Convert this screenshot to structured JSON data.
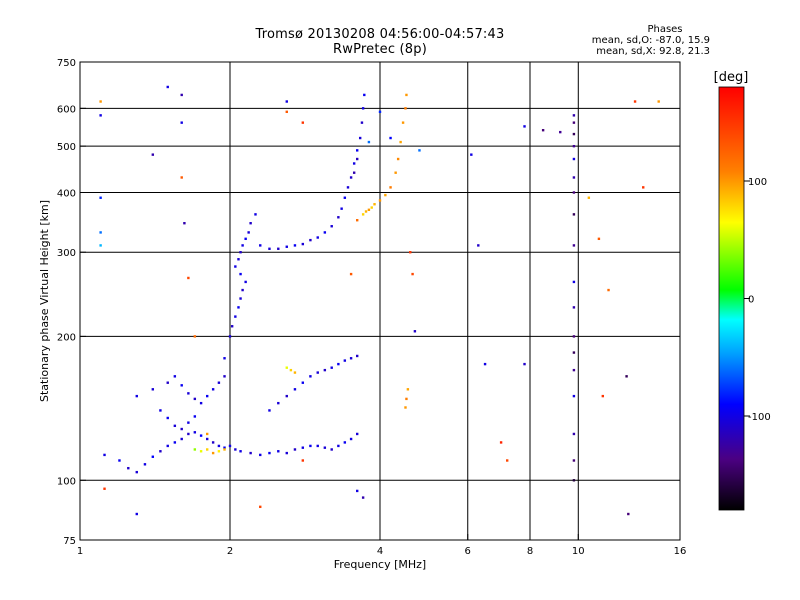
{
  "header": {
    "title": "Tromsø 20130208 04:56:00-04:57:43",
    "subtitle": "RwPretec (8p)"
  },
  "stats": {
    "heading": "Phases",
    "line_o": "mean, sd,O: -87.0, 15.9",
    "line_x": "mean, sd,X: 92.8, 21.3"
  },
  "chart_data": {
    "type": "scatter",
    "xlabel": "Frequency [MHz]",
    "ylabel": "Stationary phase Virtual Height [km]",
    "xscale": "log",
    "yscale": "log",
    "xlim": [
      1,
      16
    ],
    "ylim": [
      75,
      750
    ],
    "x_ticks": [
      "1",
      "2",
      "4",
      "6",
      "8",
      "10",
      "16"
    ],
    "y_ticks": [
      "75",
      "100",
      "200",
      "300",
      "400",
      "500",
      "600",
      "750"
    ],
    "grid": true,
    "colorbar": {
      "label": "[deg]",
      "range": [
        -180,
        180
      ],
      "ticks": [
        "100",
        "0",
        "-100"
      ]
    },
    "series": [
      {
        "name": "",
        "points": [
          [
            1.12,
            113,
            -100
          ],
          [
            1.2,
            110,
            -95
          ],
          [
            1.25,
            106,
            -110
          ],
          [
            1.3,
            104,
            -105
          ],
          [
            1.35,
            108,
            -100
          ],
          [
            1.4,
            112,
            -90
          ],
          [
            1.45,
            115,
            -110
          ],
          [
            1.5,
            118,
            -100
          ],
          [
            1.55,
            120,
            -95
          ],
          [
            1.6,
            122,
            -105
          ],
          [
            1.65,
            125,
            -110
          ],
          [
            1.7,
            126,
            -100
          ],
          [
            1.75,
            124,
            -90
          ],
          [
            1.8,
            122,
            -105
          ],
          [
            1.85,
            120,
            -110
          ],
          [
            1.9,
            118,
            -100
          ],
          [
            1.95,
            117,
            -95
          ],
          [
            2.0,
            118,
            -100
          ],
          [
            2.05,
            116,
            -105
          ],
          [
            2.1,
            115,
            -100
          ],
          [
            2.2,
            114,
            -110
          ],
          [
            2.3,
            113,
            -100
          ],
          [
            2.4,
            114,
            -95
          ],
          [
            2.5,
            115,
            -100
          ],
          [
            2.6,
            114,
            -105
          ],
          [
            2.7,
            116,
            -110
          ],
          [
            2.8,
            117,
            -100
          ],
          [
            2.9,
            118,
            -95
          ],
          [
            3.0,
            118,
            -100
          ],
          [
            3.1,
            117,
            -105
          ],
          [
            3.2,
            116,
            -110
          ],
          [
            3.3,
            118,
            -100
          ],
          [
            3.4,
            120,
            -95
          ],
          [
            3.5,
            122,
            -100
          ],
          [
            3.6,
            125,
            -105
          ],
          [
            1.7,
            116,
            40
          ],
          [
            1.75,
            115,
            60
          ],
          [
            1.8,
            116,
            80
          ],
          [
            1.85,
            114,
            100
          ],
          [
            1.9,
            115,
            70
          ],
          [
            1.95,
            116,
            90
          ],
          [
            1.3,
            150,
            -100
          ],
          [
            1.4,
            155,
            -105
          ],
          [
            1.5,
            160,
            -110
          ],
          [
            1.55,
            165,
            -100
          ],
          [
            1.6,
            158,
            -95
          ],
          [
            1.65,
            152,
            -105
          ],
          [
            1.7,
            148,
            -110
          ],
          [
            1.75,
            145,
            -100
          ],
          [
            1.8,
            150,
            -95
          ],
          [
            1.85,
            155,
            -100
          ],
          [
            1.9,
            160,
            -105
          ],
          [
            1.95,
            165,
            -110
          ],
          [
            1.45,
            140,
            -100
          ],
          [
            1.5,
            135,
            -95
          ],
          [
            1.55,
            130,
            -105
          ],
          [
            1.6,
            128,
            -110
          ],
          [
            1.65,
            132,
            -100
          ],
          [
            1.7,
            136,
            -95
          ],
          [
            2.4,
            140,
            -100
          ],
          [
            2.5,
            145,
            -105
          ],
          [
            2.6,
            150,
            -110
          ],
          [
            2.7,
            155,
            -100
          ],
          [
            2.8,
            160,
            -95
          ],
          [
            2.9,
            165,
            -100
          ],
          [
            3.0,
            168,
            -105
          ],
          [
            3.1,
            170,
            -110
          ],
          [
            3.2,
            172,
            -100
          ],
          [
            3.3,
            175,
            -95
          ],
          [
            3.4,
            178,
            -100
          ],
          [
            3.5,
            180,
            -105
          ],
          [
            3.6,
            182,
            -110
          ],
          [
            2.6,
            172,
            60
          ],
          [
            2.65,
            170,
            80
          ],
          [
            2.7,
            168,
            90
          ],
          [
            1.95,
            180,
            -100
          ],
          [
            2.0,
            200,
            -105
          ],
          [
            2.02,
            210,
            -110
          ],
          [
            2.05,
            220,
            -100
          ],
          [
            2.08,
            230,
            -95
          ],
          [
            2.1,
            240,
            -105
          ],
          [
            2.12,
            250,
            -110
          ],
          [
            2.15,
            260,
            -100
          ],
          [
            2.1,
            270,
            -95
          ],
          [
            2.05,
            280,
            -100
          ],
          [
            2.08,
            290,
            -105
          ],
          [
            2.1,
            300,
            -110
          ],
          [
            2.12,
            310,
            -100
          ],
          [
            2.15,
            320,
            -95
          ],
          [
            2.18,
            330,
            -105
          ],
          [
            2.2,
            345,
            -110
          ],
          [
            2.25,
            360,
            -100
          ],
          [
            2.3,
            310,
            -100
          ],
          [
            2.4,
            305,
            -105
          ],
          [
            2.5,
            305,
            -110
          ],
          [
            2.6,
            308,
            -100
          ],
          [
            2.7,
            310,
            -95
          ],
          [
            2.8,
            312,
            -105
          ],
          [
            2.9,
            318,
            -110
          ],
          [
            3.0,
            322,
            -100
          ],
          [
            3.1,
            330,
            -95
          ],
          [
            3.2,
            340,
            -105
          ],
          [
            3.3,
            355,
            -110
          ],
          [
            3.35,
            370,
            -100
          ],
          [
            3.4,
            390,
            -95
          ],
          [
            3.45,
            410,
            -105
          ],
          [
            3.5,
            430,
            -110
          ],
          [
            3.55,
            460,
            -100
          ],
          [
            3.6,
            490,
            -95
          ],
          [
            3.65,
            520,
            -105
          ],
          [
            3.68,
            560,
            -110
          ],
          [
            3.7,
            600,
            -100
          ],
          [
            3.72,
            640,
            -95
          ],
          [
            3.55,
            440,
            -120
          ],
          [
            3.6,
            470,
            -115
          ],
          [
            3.7,
            360,
            80
          ],
          [
            3.75,
            365,
            90
          ],
          [
            3.8,
            368,
            100
          ],
          [
            3.85,
            372,
            80
          ],
          [
            3.9,
            378,
            90
          ],
          [
            4.0,
            385,
            100
          ],
          [
            4.1,
            395,
            95
          ],
          [
            4.2,
            410,
            110
          ],
          [
            4.3,
            440,
            100
          ],
          [
            4.35,
            470,
            105
          ],
          [
            4.4,
            510,
            95
          ],
          [
            4.45,
            560,
            100
          ],
          [
            4.5,
            600,
            110
          ],
          [
            4.52,
            640,
            100
          ],
          [
            4.5,
            142,
            100
          ],
          [
            4.52,
            148,
            110
          ],
          [
            4.55,
            155,
            95
          ],
          [
            4.6,
            300,
            150
          ],
          [
            4.65,
            270,
            140
          ],
          [
            4.7,
            205,
            -110
          ],
          [
            6.1,
            480,
            -100
          ],
          [
            6.3,
            310,
            -110
          ],
          [
            6.5,
            175,
            -100
          ],
          [
            7.0,
            120,
            160
          ],
          [
            7.2,
            110,
            140
          ],
          [
            7.8,
            175,
            -110
          ],
          [
            7.8,
            550,
            -100
          ],
          [
            8.5,
            540,
            -140
          ],
          [
            9.2,
            535,
            -130
          ],
          [
            9.8,
            110,
            -140
          ],
          [
            9.8,
            125,
            -120
          ],
          [
            9.8,
            150,
            -100
          ],
          [
            9.8,
            170,
            -130
          ],
          [
            9.8,
            185,
            -150
          ],
          [
            9.8,
            200,
            -140
          ],
          [
            9.8,
            230,
            -120
          ],
          [
            9.8,
            260,
            -100
          ],
          [
            9.8,
            310,
            -130
          ],
          [
            9.8,
            360,
            -150
          ],
          [
            9.8,
            400,
            -140
          ],
          [
            9.8,
            430,
            -120
          ],
          [
            9.8,
            470,
            -100
          ],
          [
            9.8,
            500,
            -130
          ],
          [
            9.8,
            530,
            -150
          ],
          [
            9.8,
            560,
            -140
          ],
          [
            9.8,
            580,
            -120
          ],
          [
            9.8,
            100,
            -160
          ],
          [
            10.5,
            390,
            90
          ],
          [
            11.0,
            320,
            130
          ],
          [
            11.2,
            150,
            150
          ],
          [
            11.5,
            250,
            120
          ],
          [
            12.5,
            165,
            -150
          ],
          [
            12.6,
            85,
            -140
          ],
          [
            13.0,
            620,
            150
          ],
          [
            13.5,
            410,
            150
          ],
          [
            14.5,
            620,
            100
          ],
          [
            1.1,
            620,
            100
          ],
          [
            1.1,
            580,
            -100
          ],
          [
            1.1,
            330,
            -60
          ],
          [
            1.1,
            310,
            -40
          ],
          [
            1.1,
            390,
            -80
          ],
          [
            1.12,
            96,
            150
          ],
          [
            1.3,
            85,
            -100
          ],
          [
            1.4,
            480,
            -120
          ],
          [
            1.5,
            665,
            -100
          ],
          [
            1.6,
            640,
            -120
          ],
          [
            1.6,
            560,
            -100
          ],
          [
            1.6,
            430,
            130
          ],
          [
            1.62,
            345,
            -120
          ],
          [
            1.65,
            265,
            140
          ],
          [
            1.7,
            200,
            120
          ],
          [
            1.8,
            125,
            100
          ],
          [
            2.3,
            88,
            140
          ],
          [
            2.6,
            620,
            -100
          ],
          [
            2.6,
            590,
            130
          ],
          [
            2.8,
            560,
            150
          ],
          [
            3.5,
            270,
            130
          ],
          [
            3.6,
            350,
            120
          ],
          [
            3.8,
            510,
            -60
          ],
          [
            4.0,
            590,
            -80
          ],
          [
            4.2,
            520,
            -90
          ],
          [
            4.8,
            490,
            -60
          ],
          [
            2.8,
            110,
            150
          ],
          [
            3.6,
            95,
            -100
          ],
          [
            3.7,
            92,
            -120
          ]
        ]
      }
    ]
  }
}
